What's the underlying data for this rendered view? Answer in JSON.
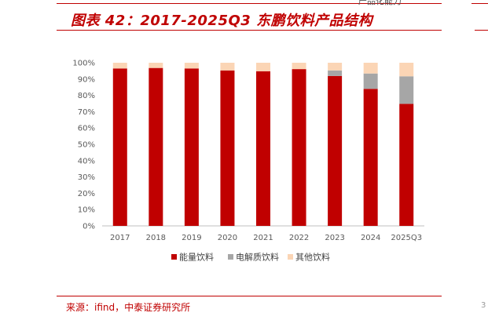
{
  "header": {
    "title": "图表 42：2017-2025Q3 东鹏饮料产品结构",
    "corner_text": "产品化能力"
  },
  "footer": {
    "source": "来源：ifind，中泰证券研究所"
  },
  "colors": {
    "accent": "#c00000",
    "energy": "#c00000",
    "electrolyte": "#a6a6a6",
    "other": "#fbd5b5"
  },
  "chart_data": {
    "type": "bar",
    "stacked": true,
    "categories": [
      "2017",
      "2018",
      "2019",
      "2020",
      "2021",
      "2022",
      "2023",
      "2024",
      "2025Q3"
    ],
    "series": [
      {
        "name": "能量饮料",
        "values": [
          96.5,
          96.8,
          96.5,
          95.3,
          94.8,
          96.1,
          91.9,
          84.0,
          74.8
        ]
      },
      {
        "name": "电解质饮料",
        "values": [
          0,
          0,
          0,
          0,
          0,
          0,
          3.4,
          9.4,
          16.9
        ]
      },
      {
        "name": "其他饮料",
        "values": [
          3.5,
          3.2,
          3.5,
          4.7,
          5.2,
          3.9,
          4.7,
          6.6,
          8.3
        ]
      }
    ],
    "y_ticks": [
      "0%",
      "10%",
      "20%",
      "30%",
      "40%",
      "50%",
      "60%",
      "70%",
      "80%",
      "90%",
      "100%"
    ],
    "ylim": [
      0,
      100
    ],
    "grid": false,
    "legend_position": "bottom"
  }
}
